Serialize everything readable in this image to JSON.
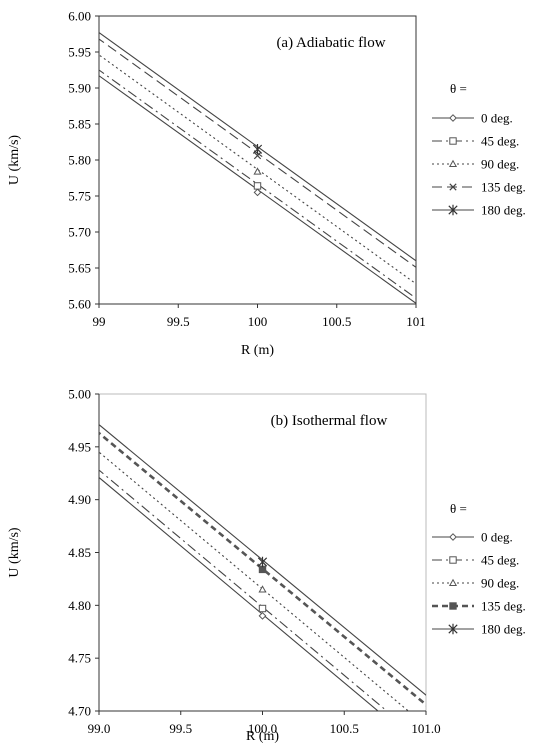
{
  "chart_data": [
    {
      "type": "line",
      "title": "(a) Adiabatic flow",
      "xlabel": "R  (m)",
      "ylabel": "U (km/s)",
      "xlim": [
        99,
        101
      ],
      "ylim": [
        5.6,
        6.0
      ],
      "x_ticks": [
        "99",
        "99.5",
        "100",
        "100.5",
        "101"
      ],
      "y_ticks": [
        "5.60",
        "5.65",
        "5.70",
        "5.75",
        "5.80",
        "5.85",
        "5.90",
        "5.95",
        "6.00"
      ],
      "legend_title": "θ =",
      "legend_position": "right",
      "grid": false,
      "series": [
        {
          "name": "0 deg.",
          "x": [
            99,
            100,
            101
          ],
          "y": [
            5.917,
            5.755,
            5.601
          ],
          "dash": "solid",
          "marker": "diamond"
        },
        {
          "name": "45 deg.",
          "x": [
            99,
            100,
            101
          ],
          "y": [
            5.925,
            5.764,
            5.608
          ],
          "dash": "dashdot",
          "marker": "square"
        },
        {
          "name": "90 deg.",
          "x": [
            99,
            100,
            101
          ],
          "y": [
            5.946,
            5.784,
            5.628
          ],
          "dash": "dot",
          "marker": "triangle"
        },
        {
          "name": "135 deg.",
          "x": [
            99,
            100,
            101
          ],
          "y": [
            5.968,
            5.806,
            5.651
          ],
          "dash": "dash",
          "marker": "x"
        },
        {
          "name": "180 deg.",
          "x": [
            99,
            100,
            101
          ],
          "y": [
            5.977,
            5.815,
            5.66
          ],
          "dash": "solid",
          "marker": "asterisk"
        }
      ]
    },
    {
      "type": "line",
      "title": "(b) Isothermal flow",
      "xlabel": "R  (m)",
      "ylabel": "U (km/s)",
      "xlim": [
        99.0,
        101.0
      ],
      "ylim": [
        4.7,
        5.0
      ],
      "x_ticks": [
        "99.0",
        "99.5",
        "100.0",
        "100.5",
        "101.0"
      ],
      "y_ticks": [
        "4.70",
        "4.75",
        "4.80",
        "4.85",
        "4.90",
        "4.95",
        "5.00"
      ],
      "legend_title": "θ =",
      "legend_position": "right",
      "grid": false,
      "series": [
        {
          "name": "0 deg.",
          "x": [
            99.0,
            100.0,
            101.0
          ],
          "y": [
            4.921,
            4.79,
            4.662
          ],
          "dash": "solid",
          "marker": "diamond"
        },
        {
          "name": "45 deg.",
          "x": [
            99.0,
            100.0,
            101.0
          ],
          "y": [
            4.928,
            4.797,
            4.669
          ],
          "dash": "dashdot",
          "marker": "square"
        },
        {
          "name": "90 deg.",
          "x": [
            99.0,
            100.0,
            101.0
          ],
          "y": [
            4.945,
            4.815,
            4.686
          ],
          "dash": "dot",
          "marker": "triangle"
        },
        {
          "name": "135 deg.",
          "x": [
            99.0,
            100.0,
            101.0
          ],
          "y": [
            4.963,
            4.834,
            4.706
          ],
          "dash": "boldDash",
          "marker": "square-filled"
        },
        {
          "name": "180 deg.",
          "x": [
            99.0,
            100.0,
            101.0
          ],
          "y": [
            4.971,
            4.841,
            4.715
          ],
          "dash": "solid",
          "marker": "asterisk"
        }
      ]
    }
  ]
}
